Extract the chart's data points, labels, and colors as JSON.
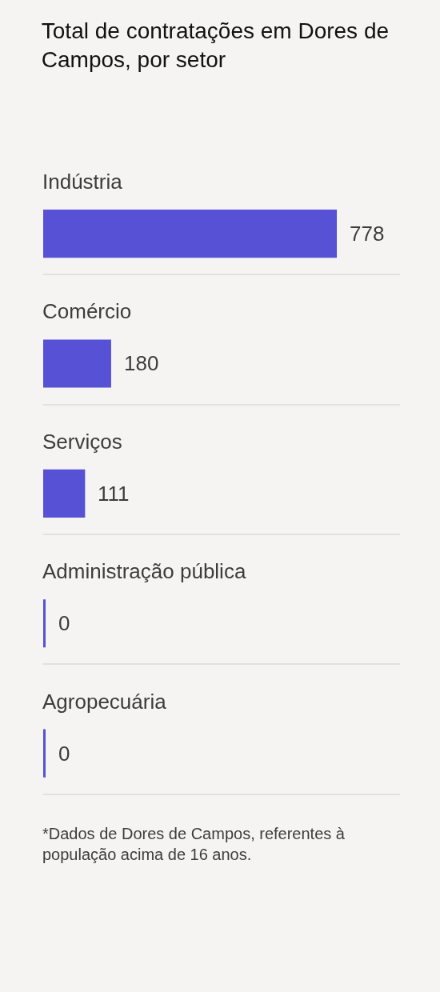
{
  "chart_data": {
    "type": "bar",
    "orientation": "horizontal",
    "title": "Total de contratações em Dores de Campos, por setor",
    "categories": [
      "Indústria",
      "Comércio",
      "Serviços",
      "Administração pública",
      "Agropecuária"
    ],
    "values": [
      778,
      180,
      111,
      0,
      0
    ],
    "color": "#5751d5",
    "data_labels": true,
    "grid": "y",
    "tick_labels": "y",
    "annotations": [
      "*Dados de Dores de Campos, referentes à população acima de 16 anos."
    ]
  }
}
